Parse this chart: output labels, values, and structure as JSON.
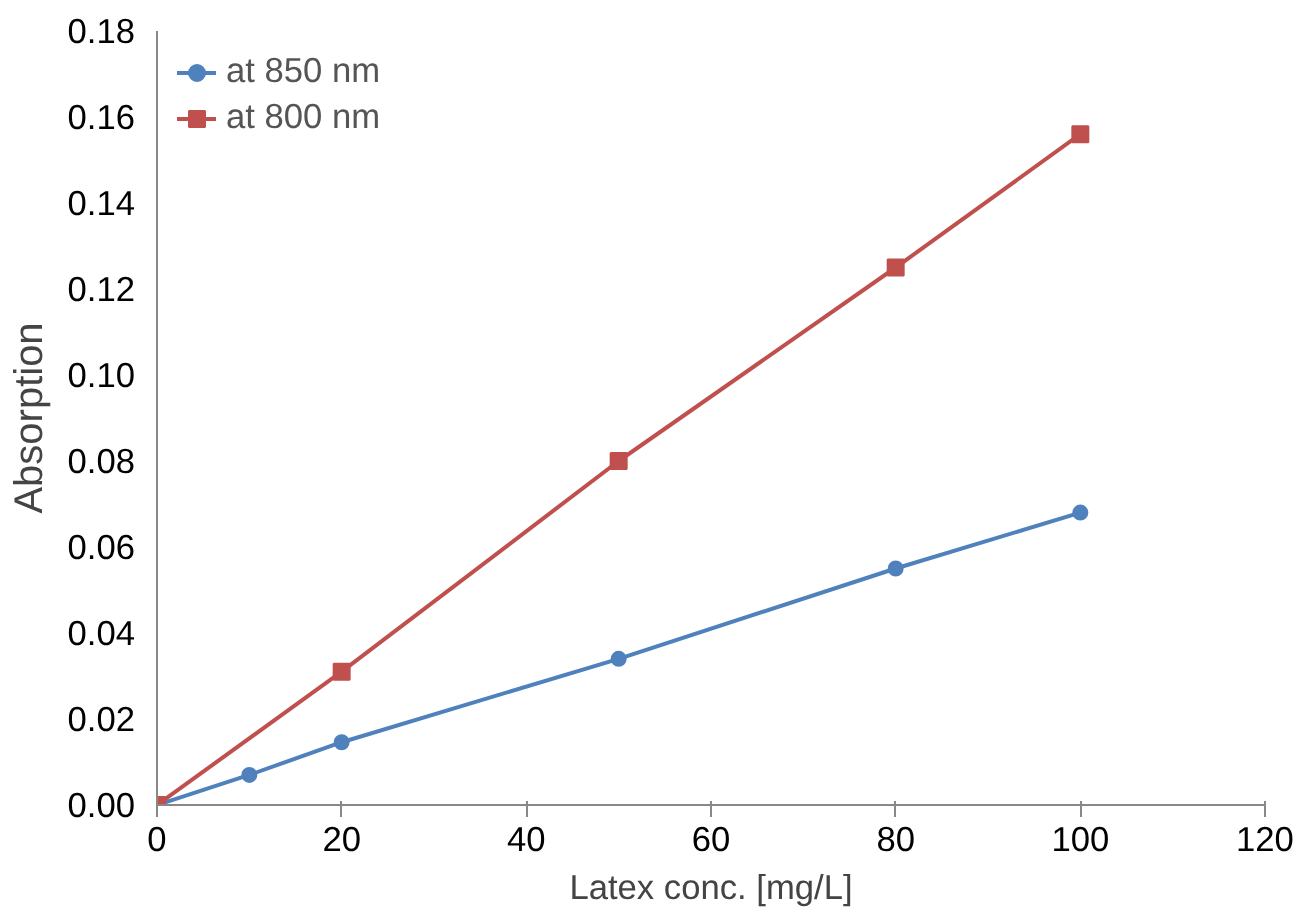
{
  "chart_data": {
    "type": "line",
    "xlabel": "Latex conc. [mg/L]",
    "ylabel": "Absorption",
    "xlim": [
      0,
      120
    ],
    "xticks": [
      0,
      20,
      40,
      60,
      80,
      100,
      120
    ],
    "ylim": [
      0,
      0.18
    ],
    "yticks": [
      {
        "value": 0,
        "label": "0.00"
      },
      {
        "value": 0.02,
        "label": "0.02"
      },
      {
        "value": 0.04,
        "label": "0.04"
      },
      {
        "value": 0.06,
        "label": "0.06"
      },
      {
        "value": 0.08,
        "label": "0.08"
      },
      {
        "value": 0.1,
        "label": "0.10"
      },
      {
        "value": 0.12,
        "label": "0.12"
      },
      {
        "value": 0.14,
        "label": "0.14"
      },
      {
        "value": 0.16,
        "label": "0.16"
      },
      {
        "value": 0.18,
        "label": "0.18"
      }
    ],
    "grid": false,
    "legend": "top left",
    "series": [
      {
        "name": "at 850 nm",
        "color": "#4f81bd",
        "marker": "circle",
        "x": [
          0,
          10,
          20,
          50,
          80,
          100
        ],
        "values": [
          0,
          0.007,
          0.0146,
          0.034,
          0.055,
          0.068
        ]
      },
      {
        "name": "at 800 nm",
        "color": "#c0504d",
        "marker": "square",
        "x": [
          0,
          20,
          50,
          80,
          100
        ],
        "values": [
          0,
          0.031,
          0.08,
          0.125,
          0.156
        ]
      }
    ]
  }
}
